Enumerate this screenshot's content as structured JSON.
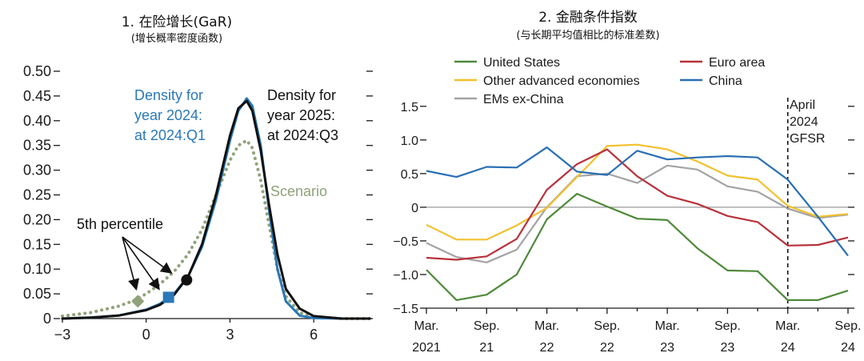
{
  "colors": {
    "density2024": "#2a78b8",
    "density2025": "#111111",
    "scenario": "#8fa27a",
    "us": "#4e8a3a",
    "euro": "#b8323c",
    "other_adv": "#f2c12e",
    "china": "#2a6fb3",
    "ems": "#a3a3a3"
  },
  "chart_data": [
    {
      "type": "line",
      "title": "1. 在险增长(GaR)",
      "subtitle": "(增长概率密度函数)",
      "xlim": [
        -3,
        8
      ],
      "ylim": [
        0,
        0.5
      ],
      "x_ticks": [
        "−3",
        "0",
        "3",
        "6"
      ],
      "x_tick_values": [
        -3,
        0,
        3,
        6
      ],
      "y_ticks": [
        "0",
        "0.05",
        "0.10",
        "0.15",
        "0.20",
        "0.25",
        "0.30",
        "0.35",
        "0.40",
        "0.45",
        "0.50"
      ],
      "y_tick_values": [
        0,
        0.05,
        0.1,
        0.15,
        0.2,
        0.25,
        0.3,
        0.35,
        0.4,
        0.45,
        0.5
      ],
      "series": [
        {
          "name": "Density for year 2024: at 2024:Q1",
          "label_lines": [
            "Density for",
            "year 2024:",
            "at 2024:Q1"
          ],
          "color_key": "density2024",
          "x": [
            -3,
            -2,
            -1,
            0,
            0.5,
            1,
            1.5,
            2,
            2.5,
            3,
            3.3,
            3.6,
            3.8,
            4.1,
            4.4,
            4.7,
            5,
            5.5,
            6,
            7,
            8
          ],
          "y": [
            0,
            0.002,
            0.006,
            0.018,
            0.03,
            0.05,
            0.085,
            0.145,
            0.24,
            0.36,
            0.42,
            0.445,
            0.43,
            0.35,
            0.22,
            0.1,
            0.035,
            0.006,
            0.001,
            0,
            0
          ]
        },
        {
          "name": "Density for year 2025: at 2024:Q3",
          "label_lines": [
            "Density for",
            "year 2025:",
            "at 2024:Q3"
          ],
          "color_key": "density2025",
          "x": [
            -3,
            -2,
            -1,
            0,
            0.5,
            1,
            1.5,
            2,
            2.5,
            3,
            3.3,
            3.6,
            3.8,
            4.1,
            4.4,
            4.7,
            5,
            5.5,
            6,
            7,
            8
          ],
          "y": [
            0,
            0.002,
            0.006,
            0.017,
            0.028,
            0.048,
            0.085,
            0.15,
            0.25,
            0.37,
            0.425,
            0.44,
            0.42,
            0.34,
            0.23,
            0.13,
            0.06,
            0.02,
            0.005,
            0,
            0
          ]
        },
        {
          "name": "Scenario",
          "label_lines": [
            "Scenario"
          ],
          "color_key": "scenario",
          "dotted": true,
          "x": [
            -3,
            -2,
            -1,
            -0.5,
            0,
            0.5,
            1,
            1.5,
            2,
            2.5,
            3,
            3.3,
            3.6,
            3.8,
            4.1,
            4.4,
            4.7,
            5,
            5.5,
            6,
            7,
            8
          ],
          "y": [
            0.005,
            0.012,
            0.025,
            0.035,
            0.05,
            0.07,
            0.095,
            0.13,
            0.18,
            0.25,
            0.32,
            0.35,
            0.36,
            0.345,
            0.28,
            0.19,
            0.1,
            0.045,
            0.012,
            0.003,
            0,
            0
          ]
        }
      ],
      "annotation": "5th percentile",
      "markers": [
        {
          "series": "Scenario",
          "shape": "diamond",
          "x": -0.3,
          "y": 0.035
        },
        {
          "series": "Density for year 2024: at 2024:Q1",
          "shape": "square",
          "x": 0.8,
          "y": 0.043
        },
        {
          "series": "Density for year 2025: at 2024:Q3",
          "shape": "circle",
          "x": 1.45,
          "y": 0.078
        }
      ]
    },
    {
      "type": "line",
      "title": "2. 金融条件指数",
      "subtitle": "(与长期平均值相比的标准差数)",
      "ylim": [
        -1.5,
        1.7
      ],
      "y_ticks": [
        "−1.5",
        "−1.0",
        "−0.5",
        "0",
        "0.5",
        "1.0",
        "1.5"
      ],
      "y_tick_values": [
        -1.5,
        -1.0,
        -0.5,
        0,
        0.5,
        1.0,
        1.5
      ],
      "x_tick_labels": [
        [
          "Mar.",
          "2021"
        ],
        [
          "Sep.",
          "21"
        ],
        [
          "Mar.",
          "22"
        ],
        [
          "Sep.",
          "22"
        ],
        [
          "Mar.",
          "23"
        ],
        [
          "Sep.",
          "23"
        ],
        [
          "Mar.",
          "24"
        ],
        [
          "Sep.",
          "24"
        ]
      ],
      "x_index_range": [
        0,
        14
      ],
      "vline": {
        "index": 12,
        "label_lines": [
          "April",
          "2024",
          "GFSR"
        ]
      },
      "zero_line": true,
      "series": [
        {
          "name": "United States",
          "color_key": "us",
          "values": [
            -0.93,
            -1.38,
            -1.3,
            -1.0,
            -0.18,
            0.2,
            0.01,
            -0.17,
            -0.19,
            -0.61,
            -0.94,
            -0.95,
            -1.38,
            -1.38,
            -1.24
          ]
        },
        {
          "name": "Euro area",
          "color_key": "euro",
          "values": [
            -0.75,
            -0.78,
            -0.73,
            -0.47,
            0.26,
            0.64,
            0.86,
            0.46,
            0.17,
            0.05,
            -0.13,
            -0.22,
            -0.57,
            -0.56,
            -0.45
          ]
        },
        {
          "name": "Other advanced economies",
          "color_key": "other_adv",
          "values": [
            -0.26,
            -0.48,
            -0.48,
            -0.27,
            -0.01,
            0.45,
            0.91,
            0.93,
            0.86,
            0.68,
            0.47,
            0.41,
            0.02,
            -0.14,
            -0.1
          ]
        },
        {
          "name": "China",
          "color_key": "china",
          "values": [
            0.54,
            0.45,
            0.6,
            0.59,
            0.89,
            0.53,
            0.48,
            0.84,
            0.71,
            0.74,
            0.76,
            0.74,
            0.41,
            -0.14,
            -0.72
          ]
        },
        {
          "name": "EMs ex-China",
          "color_key": "ems",
          "values": [
            -0.53,
            -0.74,
            -0.82,
            -0.63,
            0.0,
            0.46,
            0.5,
            0.36,
            0.62,
            0.56,
            0.31,
            0.23,
            -0.02,
            -0.16,
            -0.11
          ]
        }
      ]
    }
  ]
}
